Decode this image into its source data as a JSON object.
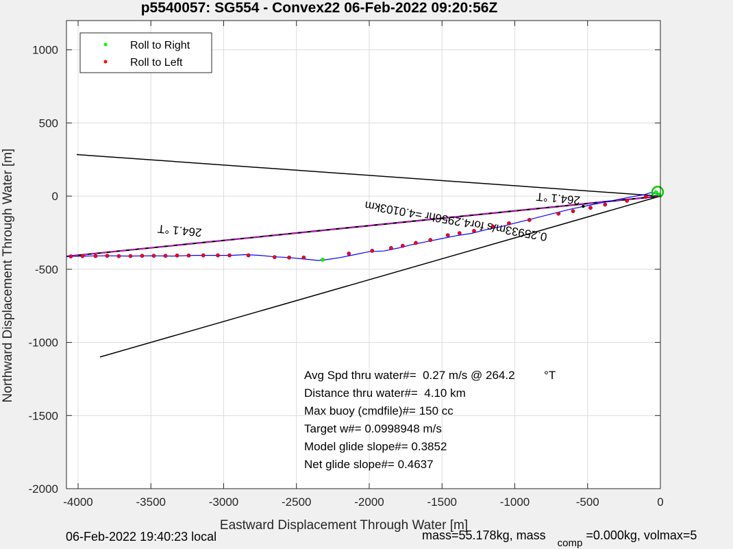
{
  "chart_data": {
    "type": "line",
    "title": "p5540057: SG554 - Convex22 06-Feb-2022 09:20:56Z",
    "xlabel": "Eastward Displacement Through Water [m]",
    "ylabel": "Northward Displacement Through Water [m]",
    "xlim": [
      -4080,
      0
    ],
    "ylim": [
      -2000,
      1200
    ],
    "xticks": [
      -4000,
      -3500,
      -3000,
      -2500,
      -2000,
      -1500,
      -1000,
      -500,
      0
    ],
    "yticks": [
      1000,
      500,
      0,
      -500,
      -1000,
      -1500,
      -2000
    ],
    "grid": true,
    "legend_position": "top-left",
    "legend": [
      {
        "label": "Roll to Right",
        "color": "#00ff00"
      },
      {
        "label": "Roll to Left",
        "color": "#ff0000"
      }
    ],
    "track": {
      "color": "#0000ff",
      "x": [
        0,
        -30,
        -60,
        -110,
        -200,
        -300,
        -400,
        -500,
        -600,
        -700,
        -800,
        -900,
        -1000,
        -1100,
        -1200,
        -1300,
        -1400,
        -1500,
        -1600,
        -1700,
        -1800,
        -1900,
        -2000,
        -2100,
        -2200,
        -2300,
        -2350,
        -2450,
        -2550,
        -2650,
        -2750,
        -2850,
        -2950,
        -3050,
        -3200,
        -3350,
        -3500,
        -3650,
        -3800,
        -3950,
        -4080
      ],
      "y": [
        0,
        15,
        25,
        10,
        -5,
        -25,
        -45,
        -65,
        -85,
        -110,
        -135,
        -160,
        -185,
        -210,
        -230,
        -255,
        -270,
        -290,
        -310,
        -330,
        -355,
        -375,
        -380,
        -400,
        -420,
        -435,
        -440,
        -430,
        -420,
        -415,
        -405,
        -400,
        -405,
        -405,
        -405,
        -410,
        -408,
        -410,
        -408,
        -410,
        -412
      ]
    },
    "roll_right_points": {
      "x": [
        -2320,
        -30,
        -10
      ],
      "y": [
        -435,
        25,
        10
      ]
    },
    "roll_left_points": {
      "x": [
        -4050,
        -3970,
        -3880,
        -3800,
        -3720,
        -3640,
        -3560,
        -3480,
        -3400,
        -3320,
        -3240,
        -3140,
        -3040,
        -2960,
        -2830,
        -2650,
        -2550,
        -2450,
        -2140,
        -1980,
        -1850,
        -1770,
        -1680,
        -1580,
        -1460,
        -1380,
        -1280,
        -1150,
        -1040,
        -900,
        -700,
        -600,
        -480,
        -380,
        -230,
        -100
      ],
      "y": [
        -412,
        -410,
        -410,
        -408,
        -410,
        -410,
        -408,
        -408,
        -408,
        -406,
        -406,
        -405,
        -405,
        -405,
        -405,
        -417,
        -420,
        -420,
        -393,
        -374,
        -355,
        -340,
        -320,
        -300,
        -267,
        -253,
        -238,
        -208,
        -186,
        -163,
        -120,
        -103,
        -80,
        -58,
        -32,
        -5
      ]
    },
    "heading_lines": [
      {
        "color": "#000000",
        "x": [
          0,
          -4010
        ],
        "y": [
          0,
          284
        ]
      },
      {
        "color": "#000000",
        "x": [
          0,
          -3850
        ],
        "y": [
          0,
          -1100
        ]
      }
    ],
    "target_line": {
      "color": "#000000",
      "dashcolor": "#ff00ff",
      "x": [
        0,
        -4080
      ],
      "y": [
        0,
        -412
      ]
    },
    "track_end_marker": {
      "x": [
        -530
      ],
      "y": [
        -70
      ]
    },
    "rotated_labels": [
      {
        "text": "264.1 °T",
        "x": -3300,
        "y": -210,
        "angle": 5.2
      },
      {
        "text": "264.1 °T",
        "x": -700,
        "y": 10,
        "angle": 5.2
      },
      {
        "text": "0.25933m/s for4.2956hr =4.0103km",
        "x": -1400,
        "y": -145,
        "angle": 10
      }
    ],
    "annotations": [
      "Avg Spd thru water#=  0.27 m/s @ 264.2         °T",
      "Distance thru water#=  4.10 km",
      "Max buoy (cmdfile)#= 150 cc",
      "Target w#= 0.0998948 m/s",
      "Model glide slope#= 0.3852",
      "Net glide slope#= 0.4637"
    ]
  },
  "footer": {
    "left": "06-Feb-2022 19:40:23 local",
    "mass_prefix": "mass=55.178kg, mass",
    "mass_sub": "comp",
    "mass_suffix": "=0.000kg, volmax=5"
  }
}
